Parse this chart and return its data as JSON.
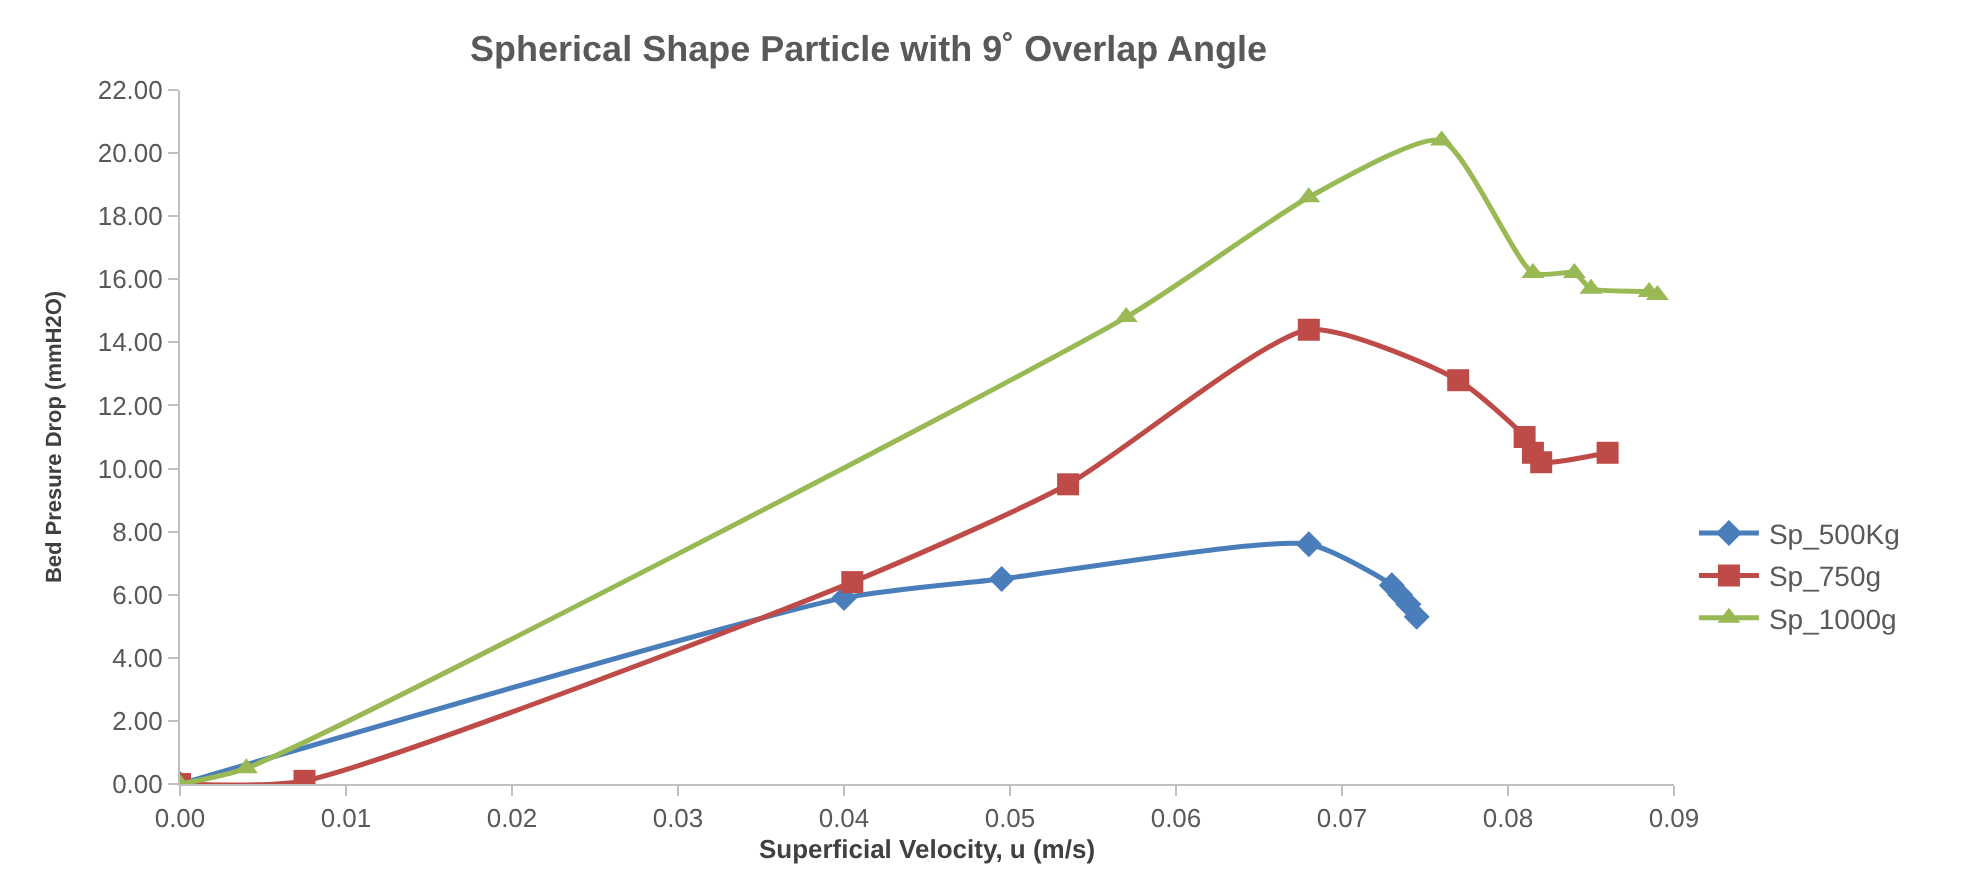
{
  "chart_data": {
    "type": "line",
    "title": "Spherical Shape Particle with 9˚ Overlap Angle",
    "xlabel": "Superficial Velocity, u (m/s)",
    "ylabel": "Bed Presure Drop (mmH2O)",
    "xlim": [
      0,
      0.09
    ],
    "xticks": [
      {
        "value": 0,
        "label": "0.00"
      },
      {
        "value": 0.01,
        "label": "0.01"
      },
      {
        "value": 0.02,
        "label": "0.02"
      },
      {
        "value": 0.03,
        "label": "0.03"
      },
      {
        "value": 0.04,
        "label": "0.04"
      },
      {
        "value": 0.05,
        "label": "0.05"
      },
      {
        "value": 0.06,
        "label": "0.06"
      },
      {
        "value": 0.07,
        "label": "0.07"
      },
      {
        "value": 0.08,
        "label": "0.08"
      },
      {
        "value": 0.09,
        "label": "0.09"
      }
    ],
    "ylim": [
      0,
      22
    ],
    "yticks": [
      {
        "value": 0,
        "label": "0.00"
      },
      {
        "value": 2,
        "label": "2.00"
      },
      {
        "value": 4,
        "label": "4.00"
      },
      {
        "value": 6,
        "label": "6.00"
      },
      {
        "value": 8,
        "label": "8.00"
      },
      {
        "value": 10,
        "label": "10.00"
      },
      {
        "value": 12,
        "label": "12.00"
      },
      {
        "value": 14,
        "label": "14.00"
      },
      {
        "value": 16,
        "label": "16.00"
      },
      {
        "value": 18,
        "label": "18.00"
      },
      {
        "value": 20,
        "label": "20.00"
      },
      {
        "value": 22,
        "label": "22.00"
      }
    ],
    "legend": "right",
    "line_style": "solid",
    "series": [
      {
        "name": "Sp_500Kg",
        "color": "#4a7ebb",
        "marker": "diamond",
        "x": [
          0,
          0.04,
          0.0495,
          0.068,
          0.073,
          0.0735,
          0.074,
          0.0745
        ],
        "values": [
          0,
          5.9,
          6.5,
          7.6,
          6.3,
          6.0,
          5.7,
          5.3
        ]
      },
      {
        "name": "Sp_750g",
        "color": "#be4b48",
        "marker": "square",
        "x": [
          0,
          0.0075,
          0.0405,
          0.0535,
          0.068,
          0.077,
          0.081,
          0.0815,
          0.082,
          0.086
        ],
        "values": [
          0,
          0.1,
          6.4,
          9.5,
          14.4,
          12.8,
          11.0,
          10.5,
          10.2,
          10.5
        ]
      },
      {
        "name": "Sp_1000g",
        "color": "#98b954",
        "marker": "triangle",
        "x": [
          0,
          0.004,
          0.057,
          0.068,
          0.076,
          0.0815,
          0.084,
          0.085,
          0.0885,
          0.089
        ],
        "values": [
          0,
          0.5,
          14.8,
          18.6,
          20.4,
          16.2,
          16.2,
          15.7,
          15.6,
          15.5
        ]
      }
    ]
  }
}
